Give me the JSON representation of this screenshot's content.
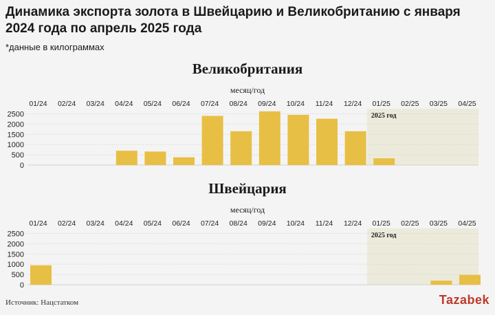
{
  "title": "Динамика экспорта золота в Швейцарию и Великобританию с января 2024 года по апрель 2025 года",
  "subtitle": "*данные в килограммах",
  "source": "Источник: Нацстатком",
  "logo": "Tazabek",
  "colors": {
    "bar": "#e8bf45",
    "highlight": "#ecebdb",
    "grid": "#cfcfcf",
    "background": "#f4f4f4"
  },
  "chart_data": [
    {
      "type": "bar",
      "title": "Великобритания",
      "xlabel": "месяц/год",
      "ylabel": "",
      "highlight_label": "2025 год",
      "categories": [
        "01/24",
        "02/24",
        "03/24",
        "04/24",
        "05/24",
        "06/24",
        "07/24",
        "08/24",
        "09/24",
        "10/24",
        "11/24",
        "12/24",
        "01/25",
        "02/25",
        "03/25",
        "04/25"
      ],
      "values": [
        0,
        0,
        0,
        700,
        660,
        380,
        2400,
        1650,
        2620,
        2450,
        2260,
        1650,
        330,
        0,
        0,
        0
      ],
      "yticks": [
        0,
        500,
        1000,
        1500,
        2000,
        2500
      ],
      "ylim": [
        0,
        2750
      ],
      "highlight_start": "01/25"
    },
    {
      "type": "bar",
      "title": "Швейцария",
      "xlabel": "месяц/год",
      "ylabel": "",
      "highlight_label": "2025 год",
      "categories": [
        "01/24",
        "02/24",
        "03/24",
        "04/24",
        "05/24",
        "06/24",
        "07/24",
        "08/24",
        "09/24",
        "10/24",
        "11/24",
        "12/24",
        "01/25",
        "02/25",
        "03/25",
        "04/25"
      ],
      "values": [
        950,
        0,
        0,
        0,
        0,
        0,
        0,
        0,
        0,
        0,
        0,
        0,
        0,
        0,
        200,
        480
      ],
      "yticks": [
        0,
        500,
        1000,
        1500,
        2000,
        2500
      ],
      "ylim": [
        0,
        2750
      ],
      "highlight_start": "01/25"
    }
  ]
}
